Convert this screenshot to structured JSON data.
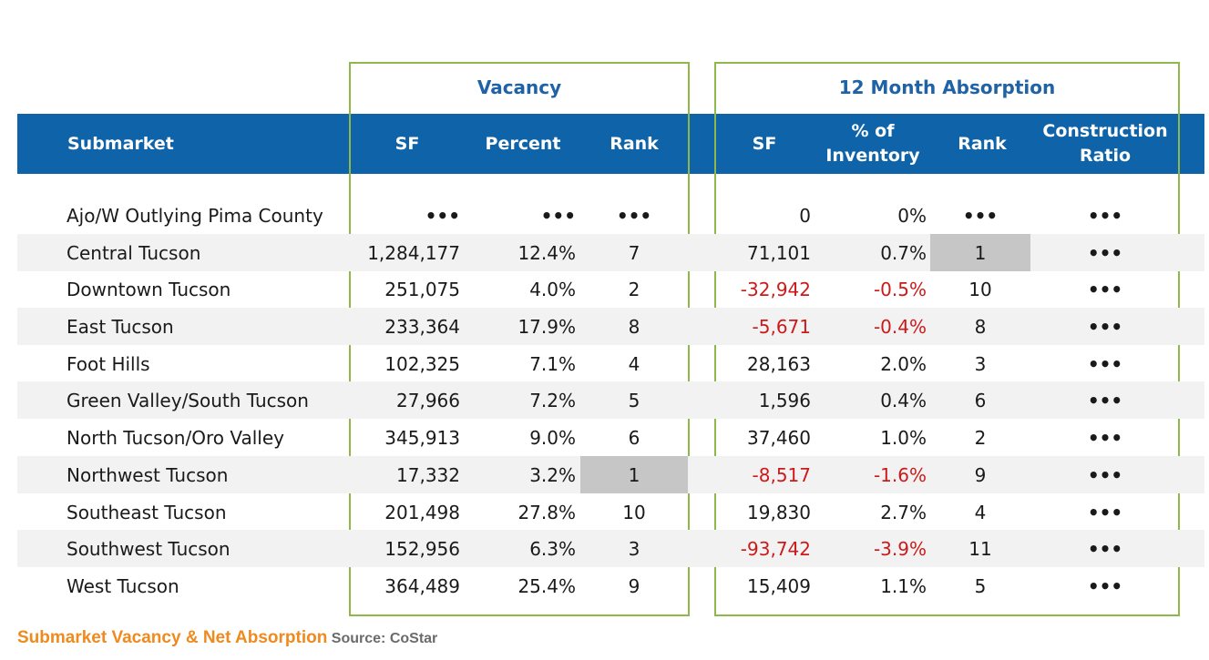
{
  "groups": {
    "vacancy": "Vacancy",
    "absorption": "12 Month Absorption"
  },
  "columns": {
    "submarket": "Submarket",
    "vac_sf": "SF",
    "vac_percent": "Percent",
    "vac_rank": "Rank",
    "abs_sf": "SF",
    "abs_pct_line1": "% of",
    "abs_pct_line2": "Inventory",
    "abs_rank": "Rank",
    "constr_line1": "Construction",
    "constr_line2": "Ratio"
  },
  "rows": [
    {
      "name": "Ajo/W Outlying Pima County",
      "vac_sf": "•••",
      "vac_pct": "•••",
      "vac_rank": "•••",
      "abs_sf": "0",
      "abs_pct": "0%",
      "abs_rank": "•••",
      "constr": "•••",
      "shaded": false,
      "negative": false,
      "vac_rank_highlight": false,
      "abs_rank_highlight": false
    },
    {
      "name": "Central Tucson",
      "vac_sf": "1,284,177",
      "vac_pct": "12.4%",
      "vac_rank": "7",
      "abs_sf": "71,101",
      "abs_pct": "0.7%",
      "abs_rank": "1",
      "constr": "•••",
      "shaded": true,
      "negative": false,
      "vac_rank_highlight": false,
      "abs_rank_highlight": true
    },
    {
      "name": "Downtown Tucson",
      "vac_sf": "251,075",
      "vac_pct": "4.0%",
      "vac_rank": "2",
      "abs_sf": "-32,942",
      "abs_pct": "-0.5%",
      "abs_rank": "10",
      "constr": "•••",
      "shaded": false,
      "negative": true,
      "vac_rank_highlight": false,
      "abs_rank_highlight": false
    },
    {
      "name": "East Tucson",
      "vac_sf": "233,364",
      "vac_pct": "17.9%",
      "vac_rank": "8",
      "abs_sf": "-5,671",
      "abs_pct": "-0.4%",
      "abs_rank": "8",
      "constr": "•••",
      "shaded": true,
      "negative": true,
      "vac_rank_highlight": false,
      "abs_rank_highlight": false
    },
    {
      "name": "Foot Hills",
      "vac_sf": "102,325",
      "vac_pct": "7.1%",
      "vac_rank": "4",
      "abs_sf": "28,163",
      "abs_pct": "2.0%",
      "abs_rank": "3",
      "constr": "•••",
      "shaded": false,
      "negative": false,
      "vac_rank_highlight": false,
      "abs_rank_highlight": false
    },
    {
      "name": "Green Valley/South Tucson",
      "vac_sf": "27,966",
      "vac_pct": "7.2%",
      "vac_rank": "5",
      "abs_sf": "1,596",
      "abs_pct": "0.4%",
      "abs_rank": "6",
      "constr": "•••",
      "shaded": true,
      "negative": false,
      "vac_rank_highlight": false,
      "abs_rank_highlight": false
    },
    {
      "name": "North Tucson/Oro Valley",
      "vac_sf": "345,913",
      "vac_pct": "9.0%",
      "vac_rank": "6",
      "abs_sf": "37,460",
      "abs_pct": "1.0%",
      "abs_rank": "2",
      "constr": "•••",
      "shaded": false,
      "negative": false,
      "vac_rank_highlight": false,
      "abs_rank_highlight": false
    },
    {
      "name": "Northwest Tucson",
      "vac_sf": "17,332",
      "vac_pct": "3.2%",
      "vac_rank": "1",
      "abs_sf": "-8,517",
      "abs_pct": "-1.6%",
      "abs_rank": "9",
      "constr": "•••",
      "shaded": true,
      "negative": true,
      "vac_rank_highlight": true,
      "abs_rank_highlight": false
    },
    {
      "name": "Southeast Tucson",
      "vac_sf": "201,498",
      "vac_pct": "27.8%",
      "vac_rank": "10",
      "abs_sf": "19,830",
      "abs_pct": "2.7%",
      "abs_rank": "4",
      "constr": "•••",
      "shaded": false,
      "negative": false,
      "vac_rank_highlight": false,
      "abs_rank_highlight": false
    },
    {
      "name": "Southwest Tucson",
      "vac_sf": "152,956",
      "vac_pct": "6.3%",
      "vac_rank": "3",
      "abs_sf": "-93,742",
      "abs_pct": "-3.9%",
      "abs_rank": "11",
      "constr": "•••",
      "shaded": true,
      "negative": true,
      "vac_rank_highlight": false,
      "abs_rank_highlight": false
    },
    {
      "name": "West Tucson",
      "vac_sf": "364,489",
      "vac_pct": "25.4%",
      "vac_rank": "9",
      "abs_sf": "15,409",
      "abs_pct": "1.1%",
      "abs_rank": "5",
      "constr": "•••",
      "shaded": false,
      "negative": false,
      "vac_rank_highlight": false,
      "abs_rank_highlight": false
    }
  ],
  "footer": {
    "caption": "Submarket Vacancy & Net Absorption",
    "source": "Source: CoStar"
  },
  "colors": {
    "header_bg": "#0f63a8",
    "group_title": "#1f63a6",
    "frame": "#8fb84a",
    "negative": "#cc1a1a",
    "highlight": "#c6c6c6",
    "caption": "#ef8a1e"
  }
}
